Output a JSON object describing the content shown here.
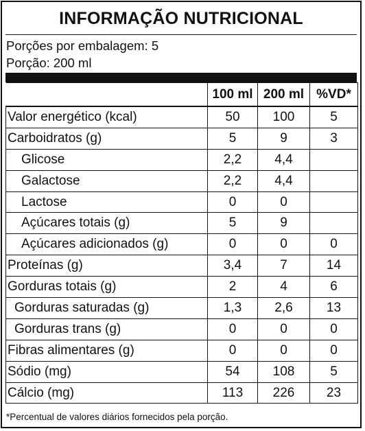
{
  "title": "INFORMAÇÃO NUTRICIONAL",
  "servings_line": "Porções por embalagem: 5",
  "portion_line": "Porção: 200 ml",
  "columns": [
    "100 ml",
    "200 ml",
    "%VD*"
  ],
  "rows": [
    {
      "name": "Valor energético (kcal)",
      "v100": "50",
      "v200": "100",
      "vd": "5"
    },
    {
      "name": "Carboidratos (g)",
      "v100": "5",
      "v200": "9",
      "vd": "3"
    },
    {
      "name": "Glicose",
      "v100": "2,2",
      "v200": "4,4",
      "vd": ""
    },
    {
      "name": "Galactose",
      "v100": "2,2",
      "v200": "4,4",
      "vd": ""
    },
    {
      "name": "Lactose",
      "v100": "0",
      "v200": "0",
      "vd": ""
    },
    {
      "name": "Açúcares totais (g)",
      "v100": "5",
      "v200": "9",
      "vd": ""
    },
    {
      "name": "Açúcares adicionados (g)",
      "v100": "0",
      "v200": "0",
      "vd": "0"
    },
    {
      "name": "Proteínas (g)",
      "v100": "3,4",
      "v200": "7",
      "vd": "14"
    },
    {
      "name": "Gorduras totais (g)",
      "v100": "2",
      "v200": "4",
      "vd": "6"
    },
    {
      "name": "Gorduras saturadas (g)",
      "v100": "1,3",
      "v200": "2,6",
      "vd": "13"
    },
    {
      "name": "Gorduras trans (g)",
      "v100": "0",
      "v200": "0",
      "vd": "0"
    },
    {
      "name": "Fibras alimentares (g)",
      "v100": "0",
      "v200": "0",
      "vd": "0"
    },
    {
      "name": "Sódio (mg)",
      "v100": "54",
      "v200": "108",
      "vd": "5"
    },
    {
      "name": "Cálcio (mg)",
      "v100": "113",
      "v200": "226",
      "vd": "23"
    }
  ],
  "footnote": "*Percentual de valores diários fornecidos pela porção."
}
